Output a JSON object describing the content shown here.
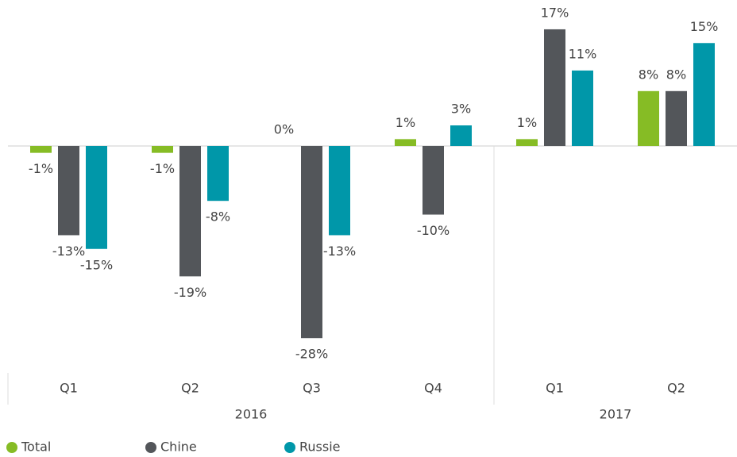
{
  "chart_data": {
    "type": "bar",
    "categories": [
      "Q1",
      "Q2",
      "Q3",
      "Q4",
      "Q1",
      "Q2"
    ],
    "x_groups": [
      {
        "label": "2016",
        "count": 4
      },
      {
        "label": "2017",
        "count": 2
      }
    ],
    "series": [
      {
        "name": "Total",
        "color": "#86bc25",
        "values": [
          -1,
          -1,
          0,
          1,
          1,
          8
        ],
        "value_labels": [
          "-1%",
          "-1%",
          "0%",
          "1%",
          "1%",
          "8%"
        ]
      },
      {
        "name": "Chine",
        "color": "#53565a",
        "values": [
          -13,
          -19,
          -28,
          -10,
          17,
          8
        ],
        "value_labels": [
          "-13%",
          "-19%",
          "-28%",
          "-10%",
          "17%",
          "8%"
        ]
      },
      {
        "name": "Russie",
        "color": "#0097a9",
        "values": [
          -15,
          -8,
          -13,
          3,
          11,
          15
        ],
        "value_labels": [
          "-15%",
          "-8%",
          "-13%",
          "3%",
          "11%",
          "15%"
        ]
      }
    ],
    "ylim": [
      -30,
      20
    ],
    "legend": "bottom"
  }
}
